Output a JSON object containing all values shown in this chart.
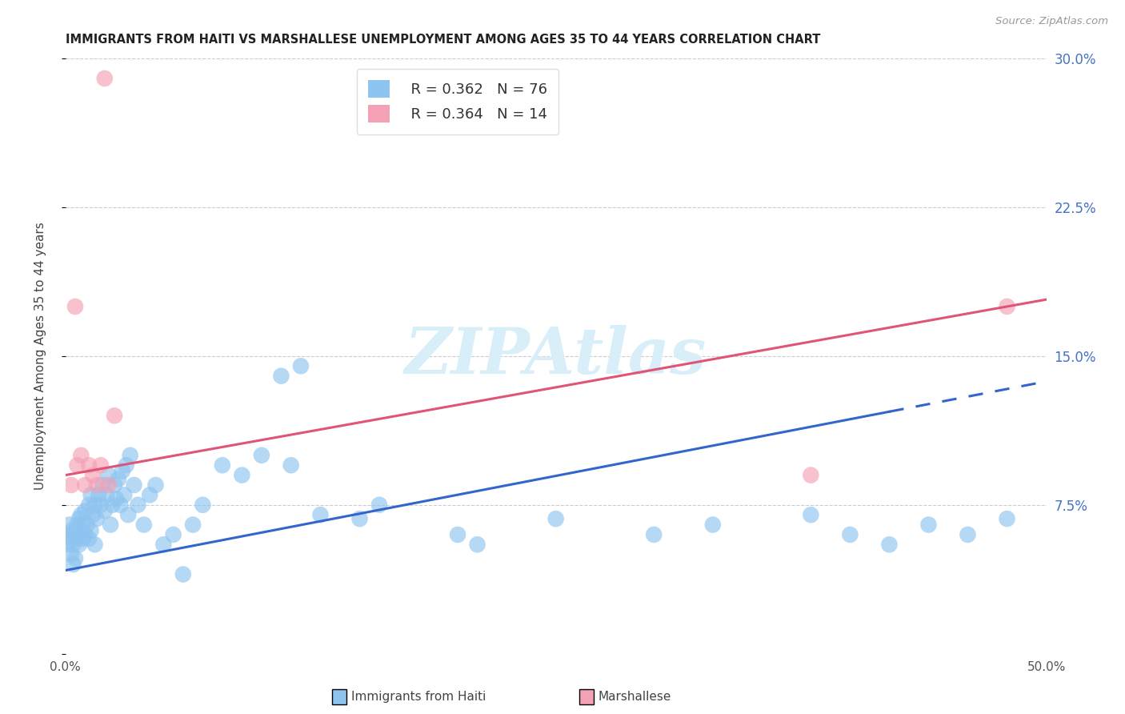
{
  "title": "IMMIGRANTS FROM HAITI VS MARSHALLESE UNEMPLOYMENT AMONG AGES 35 TO 44 YEARS CORRELATION CHART",
  "source": "Source: ZipAtlas.com",
  "ylabel": "Unemployment Among Ages 35 to 44 years",
  "xlim": [
    0.0,
    0.5
  ],
  "ylim": [
    0.0,
    0.3
  ],
  "ytick_vals": [
    0.0,
    0.075,
    0.15,
    0.225,
    0.3
  ],
  "ytick_labels_right": [
    "",
    "7.5%",
    "15.0%",
    "22.5%",
    "30.0%"
  ],
  "legend1_label": "Immigrants from Haiti",
  "legend2_label": "Marshallese",
  "R1": "0.362",
  "N1": "76",
  "R2": "0.364",
  "N2": "14",
  "color_blue": "#8EC4F0",
  "color_pink": "#F4A0B5",
  "trendline_blue": "#3366CC",
  "trendline_pink": "#E05575",
  "watermark_color": "#D8EEF9",
  "background_color": "#FFFFFF",
  "haiti_x": [
    0.001,
    0.002,
    0.002,
    0.003,
    0.003,
    0.003,
    0.004,
    0.004,
    0.005,
    0.005,
    0.006,
    0.006,
    0.007,
    0.007,
    0.008,
    0.008,
    0.009,
    0.009,
    0.01,
    0.01,
    0.011,
    0.012,
    0.012,
    0.013,
    0.013,
    0.014,
    0.015,
    0.015,
    0.016,
    0.017,
    0.018,
    0.019,
    0.02,
    0.021,
    0.022,
    0.023,
    0.024,
    0.025,
    0.026,
    0.027,
    0.028,
    0.029,
    0.03,
    0.031,
    0.032,
    0.033,
    0.035,
    0.037,
    0.04,
    0.043,
    0.046,
    0.05,
    0.055,
    0.06,
    0.065,
    0.07,
    0.08,
    0.09,
    0.1,
    0.11,
    0.115,
    0.12,
    0.13,
    0.15,
    0.16,
    0.2,
    0.21,
    0.25,
    0.3,
    0.33,
    0.38,
    0.4,
    0.42,
    0.44,
    0.46,
    0.48
  ],
  "haiti_y": [
    0.055,
    0.06,
    0.065,
    0.05,
    0.058,
    0.062,
    0.045,
    0.055,
    0.06,
    0.048,
    0.058,
    0.065,
    0.055,
    0.068,
    0.062,
    0.07,
    0.058,
    0.065,
    0.06,
    0.072,
    0.065,
    0.058,
    0.075,
    0.062,
    0.08,
    0.07,
    0.075,
    0.055,
    0.068,
    0.08,
    0.075,
    0.085,
    0.072,
    0.08,
    0.09,
    0.065,
    0.075,
    0.085,
    0.078,
    0.088,
    0.075,
    0.092,
    0.08,
    0.095,
    0.07,
    0.1,
    0.085,
    0.075,
    0.065,
    0.08,
    0.085,
    0.055,
    0.06,
    0.04,
    0.065,
    0.075,
    0.095,
    0.09,
    0.1,
    0.14,
    0.095,
    0.145,
    0.07,
    0.068,
    0.075,
    0.06,
    0.055,
    0.068,
    0.06,
    0.065,
    0.07,
    0.06,
    0.055,
    0.065,
    0.06,
    0.068
  ],
  "marsh_x": [
    0.003,
    0.005,
    0.006,
    0.008,
    0.01,
    0.012,
    0.014,
    0.016,
    0.018,
    0.02,
    0.022,
    0.025,
    0.38,
    0.48
  ],
  "marsh_y": [
    0.085,
    0.175,
    0.095,
    0.1,
    0.085,
    0.095,
    0.09,
    0.085,
    0.095,
    0.29,
    0.085,
    0.12,
    0.09,
    0.175
  ],
  "blue_trend_x0": 0.0,
  "blue_trend_x_solid_end": 0.42,
  "blue_trend_x1": 0.5,
  "pink_trend_x0": 0.0,
  "pink_trend_x1": 0.5
}
